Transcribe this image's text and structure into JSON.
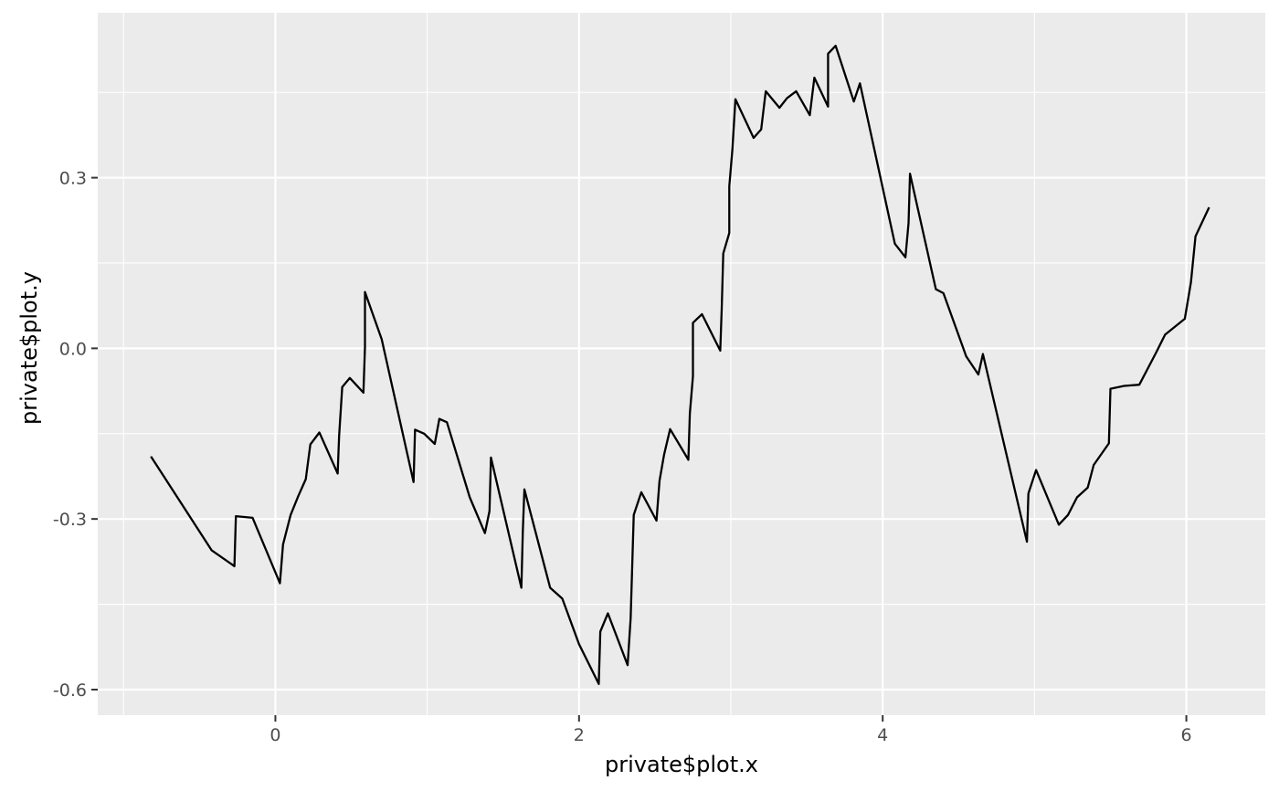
{
  "chart_data": {
    "type": "line",
    "title": "",
    "xlabel": "private$plot.x",
    "ylabel": "private$plot.y",
    "xlim": [
      -1.17,
      6.52
    ],
    "ylim": [
      -0.645,
      0.59
    ],
    "x_ticks": [
      0,
      2,
      4,
      6
    ],
    "x_tick_labels": [
      "0",
      "2",
      "4",
      "6"
    ],
    "x_minor_ticks": [
      -1,
      1,
      3,
      5
    ],
    "y_ticks": [
      -0.6,
      -0.3,
      0.0,
      0.3
    ],
    "y_tick_labels": [
      "-0.6",
      "-0.3",
      "0.0",
      "0.3"
    ],
    "y_minor_ticks": [
      -0.45,
      -0.15,
      0.15,
      0.45
    ],
    "grid": true,
    "legend": "none",
    "colors": {
      "panel": "#ebebeb",
      "grid": "#ffffff",
      "line": "#000000",
      "tick_text": "#4d4d4d"
    },
    "series": [
      {
        "x": [
          -0.82,
          -0.42,
          -0.27,
          -0.26,
          -0.15,
          0.03,
          0.05,
          0.1,
          0.15,
          0.2,
          0.23,
          0.29,
          0.41,
          0.42,
          0.44,
          0.49,
          0.58,
          0.59,
          0.59,
          0.7,
          0.91,
          0.92,
          0.98,
          1.05,
          1.08,
          1.13,
          1.28,
          1.38,
          1.41,
          1.42,
          1.62,
          1.63,
          1.64,
          1.81,
          1.89,
          2.0,
          2.13,
          2.14,
          2.19,
          2.32,
          2.34,
          2.36,
          2.41,
          2.51,
          2.53,
          2.56,
          2.6,
          2.72,
          2.73,
          2.75,
          2.75,
          2.81,
          2.93,
          2.94,
          2.95,
          2.99,
          2.99,
          3.01,
          3.03,
          3.15,
          3.2,
          3.23,
          3.32,
          3.37,
          3.43,
          3.52,
          3.55,
          3.64,
          3.64,
          3.69,
          3.81,
          3.85,
          4.08,
          4.15,
          4.17,
          4.18,
          4.35,
          4.4,
          4.55,
          4.63,
          4.66,
          4.95,
          4.96,
          5.01,
          5.16,
          5.22,
          5.28,
          5.35,
          5.39,
          5.49,
          5.5,
          5.59,
          5.69,
          5.8,
          5.86,
          5.99,
          6.03,
          6.06,
          6.15
        ],
        "y": [
          -0.19,
          -0.355,
          -0.383,
          -0.295,
          -0.298,
          -0.413,
          -0.345,
          -0.293,
          -0.26,
          -0.23,
          -0.169,
          -0.148,
          -0.22,
          -0.154,
          -0.068,
          -0.052,
          -0.078,
          0.002,
          0.099,
          0.016,
          -0.235,
          -0.143,
          -0.15,
          -0.168,
          -0.124,
          -0.13,
          -0.262,
          -0.325,
          -0.286,
          -0.192,
          -0.421,
          -0.321,
          -0.248,
          -0.421,
          -0.44,
          -0.52,
          -0.59,
          -0.498,
          -0.466,
          -0.557,
          -0.475,
          -0.293,
          -0.253,
          -0.303,
          -0.233,
          -0.187,
          -0.142,
          -0.196,
          -0.115,
          -0.049,
          0.045,
          0.06,
          -0.004,
          0.07,
          0.167,
          0.203,
          0.285,
          0.35,
          0.438,
          0.37,
          0.385,
          0.452,
          0.423,
          0.44,
          0.452,
          0.41,
          0.476,
          0.425,
          0.518,
          0.532,
          0.434,
          0.466,
          0.184,
          0.16,
          0.22,
          0.307,
          0.104,
          0.097,
          -0.014,
          -0.046,
          -0.01,
          -0.34,
          -0.255,
          -0.214,
          -0.31,
          -0.293,
          -0.262,
          -0.245,
          -0.205,
          -0.167,
          -0.071,
          -0.066,
          -0.064,
          -0.008,
          0.024,
          0.052,
          0.116,
          0.197,
          0.248
        ]
      }
    ]
  }
}
